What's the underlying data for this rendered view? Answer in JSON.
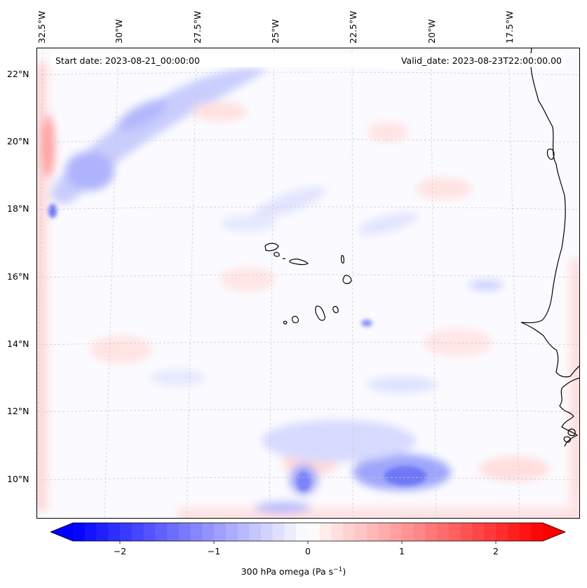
{
  "start_date_text": "Start date: 2023-08-21_00:00:00",
  "valid_date_text": "Valid_date: 2023-08-23T22:00:00.00",
  "longitude_labels": [
    "32.5°W",
    "30°W",
    "27.5°W",
    "25°W",
    "22.5°W",
    "20°W",
    "17.5°W"
  ],
  "latitude_labels": [
    "22°N",
    "20°N",
    "18°N",
    "16°N",
    "14°N",
    "12°N",
    "10°N"
  ],
  "colorbar": {
    "label": "300 hPa omega (Pa s",
    "label_sup": "−1",
    "label_close": ")",
    "ticks": [
      "−2",
      "−1",
      "0",
      "1",
      "2"
    ],
    "min": -2.5,
    "max": 2.5,
    "extend": "both",
    "colormap": "bwr"
  },
  "colors": {
    "negative": "#0000ff",
    "neutral": "#ffffff",
    "positive": "#ff0000",
    "coastline": "#000000",
    "gridline": "#c8c8c8"
  }
}
